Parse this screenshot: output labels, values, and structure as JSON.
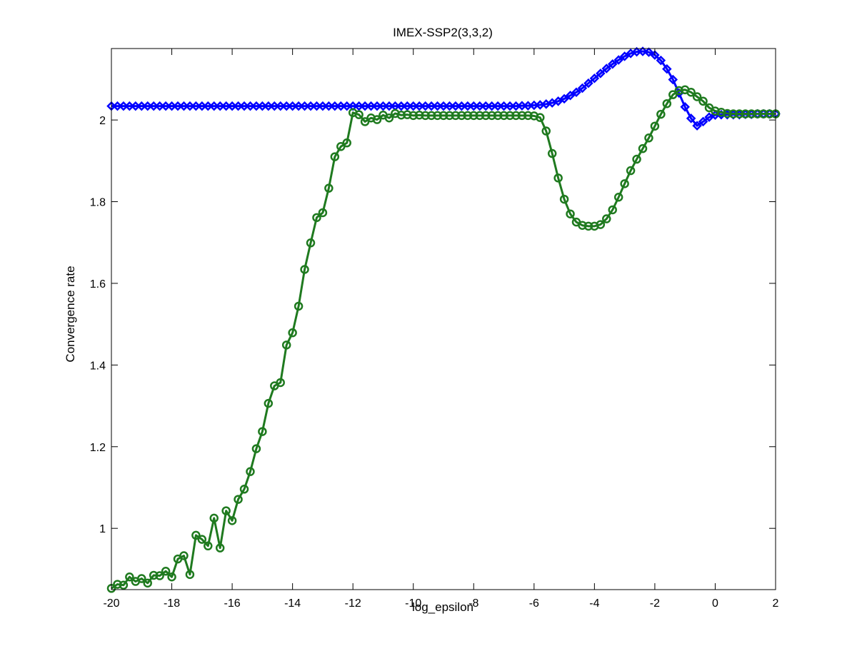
{
  "chart_data": {
    "type": "line",
    "title": "IMEX-SSP2(3,3,2)",
    "xlabel": "log_epsilon",
    "ylabel": "Convergence rate",
    "xlim": [
      -20,
      2
    ],
    "ylim": [
      0.85,
      2.175
    ],
    "x_ticks": [
      -20,
      -18,
      -16,
      -14,
      -12,
      -10,
      -8,
      -6,
      -4,
      -2,
      0,
      2
    ],
    "x_tick_labels": [
      "-20",
      "-18",
      "-16",
      "-14",
      "-12",
      "-10",
      "-8",
      "-6",
      "-4",
      "-2",
      "0",
      "2"
    ],
    "y_ticks": [
      1,
      1.2,
      1.4,
      1.6,
      1.8,
      2
    ],
    "y_tick_labels": [
      "1",
      "1.2",
      "1.4",
      "1.6",
      "1.8",
      "2"
    ],
    "grid": false,
    "legend": "none",
    "series": [
      {
        "color": "#0000ff",
        "marker": "diamond",
        "points": [
          [
            -20,
            2.034
          ],
          [
            -19.8,
            2.034
          ],
          [
            -19.6,
            2.034
          ],
          [
            -19.4,
            2.034
          ],
          [
            -19.2,
            2.034
          ],
          [
            -19.0,
            2.034
          ],
          [
            -18.8,
            2.034
          ],
          [
            -18.6,
            2.034
          ],
          [
            -18.4,
            2.034
          ],
          [
            -18.2,
            2.034
          ],
          [
            -18.0,
            2.034
          ],
          [
            -17.8,
            2.034
          ],
          [
            -17.6,
            2.034
          ],
          [
            -17.4,
            2.034
          ],
          [
            -17.2,
            2.034
          ],
          [
            -17.0,
            2.034
          ],
          [
            -16.8,
            2.034
          ],
          [
            -16.6,
            2.034
          ],
          [
            -16.4,
            2.034
          ],
          [
            -16.2,
            2.034
          ],
          [
            -16.0,
            2.034
          ],
          [
            -15.8,
            2.034
          ],
          [
            -15.6,
            2.034
          ],
          [
            -15.4,
            2.034
          ],
          [
            -15.2,
            2.034
          ],
          [
            -15.0,
            2.034
          ],
          [
            -14.8,
            2.034
          ],
          [
            -14.6,
            2.034
          ],
          [
            -14.4,
            2.034
          ],
          [
            -14.2,
            2.034
          ],
          [
            -14.0,
            2.034
          ],
          [
            -13.8,
            2.034
          ],
          [
            -13.6,
            2.034
          ],
          [
            -13.4,
            2.034
          ],
          [
            -13.2,
            2.034
          ],
          [
            -13.0,
            2.034
          ],
          [
            -12.8,
            2.034
          ],
          [
            -12.6,
            2.034
          ],
          [
            -12.4,
            2.034
          ],
          [
            -12.2,
            2.034
          ],
          [
            -12.0,
            2.034
          ],
          [
            -11.8,
            2.034
          ],
          [
            -11.6,
            2.034
          ],
          [
            -11.4,
            2.034
          ],
          [
            -11.2,
            2.034
          ],
          [
            -11.0,
            2.034
          ],
          [
            -10.8,
            2.034
          ],
          [
            -10.6,
            2.034
          ],
          [
            -10.4,
            2.034
          ],
          [
            -10.2,
            2.034
          ],
          [
            -10.0,
            2.034
          ],
          [
            -9.8,
            2.034
          ],
          [
            -9.6,
            2.034
          ],
          [
            -9.4,
            2.034
          ],
          [
            -9.2,
            2.034
          ],
          [
            -9.0,
            2.034
          ],
          [
            -8.8,
            2.034
          ],
          [
            -8.6,
            2.034
          ],
          [
            -8.4,
            2.034
          ],
          [
            -8.2,
            2.034
          ],
          [
            -8.0,
            2.034
          ],
          [
            -7.8,
            2.034
          ],
          [
            -7.6,
            2.034
          ],
          [
            -7.4,
            2.034
          ],
          [
            -7.2,
            2.034
          ],
          [
            -7.0,
            2.034
          ],
          [
            -6.8,
            2.034
          ],
          [
            -6.6,
            2.034
          ],
          [
            -6.4,
            2.035
          ],
          [
            -6.2,
            2.035
          ],
          [
            -6.0,
            2.036
          ],
          [
            -5.8,
            2.037
          ],
          [
            -5.6,
            2.039
          ],
          [
            -5.4,
            2.042
          ],
          [
            -5.2,
            2.046
          ],
          [
            -5.0,
            2.052
          ],
          [
            -4.8,
            2.06
          ],
          [
            -4.6,
            2.068
          ],
          [
            -4.4,
            2.078
          ],
          [
            -4.2,
            2.09
          ],
          [
            -4.0,
            2.102
          ],
          [
            -3.8,
            2.114
          ],
          [
            -3.6,
            2.126
          ],
          [
            -3.4,
            2.137
          ],
          [
            -3.2,
            2.147
          ],
          [
            -3.0,
            2.156
          ],
          [
            -2.8,
            2.163
          ],
          [
            -2.6,
            2.167
          ],
          [
            -2.4,
            2.168
          ],
          [
            -2.2,
            2.166
          ],
          [
            -2.0,
            2.159
          ],
          [
            -1.8,
            2.146
          ],
          [
            -1.6,
            2.125
          ],
          [
            -1.4,
            2.099
          ],
          [
            -1.2,
            2.066
          ],
          [
            -1.0,
            2.032
          ],
          [
            -0.8,
            2.004
          ],
          [
            -0.6,
            1.986
          ],
          [
            -0.4,
            1.996
          ],
          [
            -0.2,
            2.007
          ],
          [
            0.0,
            2.012
          ],
          [
            0.2,
            2.013
          ],
          [
            0.4,
            2.013
          ],
          [
            0.6,
            2.013
          ],
          [
            0.8,
            2.013
          ],
          [
            1.0,
            2.014
          ],
          [
            1.2,
            2.014
          ],
          [
            1.4,
            2.015
          ],
          [
            1.6,
            2.015
          ],
          [
            1.8,
            2.015
          ],
          [
            2.0,
            2.015
          ]
        ]
      },
      {
        "color": "#1f7a1f",
        "marker": "circle",
        "points": [
          [
            -20.0,
            0.853
          ],
          [
            -19.8,
            0.863
          ],
          [
            -19.6,
            0.861
          ],
          [
            -19.4,
            0.881
          ],
          [
            -19.2,
            0.87
          ],
          [
            -19.0,
            0.877
          ],
          [
            -18.8,
            0.866
          ],
          [
            -18.6,
            0.885
          ],
          [
            -18.4,
            0.884
          ],
          [
            -18.2,
            0.895
          ],
          [
            -18.0,
            0.881
          ],
          [
            -17.8,
            0.925
          ],
          [
            -17.6,
            0.933
          ],
          [
            -17.4,
            0.887
          ],
          [
            -17.2,
            0.983
          ],
          [
            -17.0,
            0.973
          ],
          [
            -16.8,
            0.957
          ],
          [
            -16.6,
            1.025
          ],
          [
            -16.4,
            0.952
          ],
          [
            -16.2,
            1.043
          ],
          [
            -16.0,
            1.019
          ],
          [
            -15.8,
            1.071
          ],
          [
            -15.6,
            1.096
          ],
          [
            -15.4,
            1.139
          ],
          [
            -15.2,
            1.195
          ],
          [
            -15.0,
            1.237
          ],
          [
            -14.8,
            1.306
          ],
          [
            -14.6,
            1.349
          ],
          [
            -14.4,
            1.357
          ],
          [
            -14.2,
            1.449
          ],
          [
            -14.0,
            1.479
          ],
          [
            -13.8,
            1.544
          ],
          [
            -13.6,
            1.634
          ],
          [
            -13.4,
            1.699
          ],
          [
            -13.2,
            1.761
          ],
          [
            -13.0,
            1.773
          ],
          [
            -12.8,
            1.833
          ],
          [
            -12.6,
            1.91
          ],
          [
            -12.4,
            1.935
          ],
          [
            -12.2,
            1.944
          ],
          [
            -12.0,
            2.018
          ],
          [
            -11.8,
            2.013
          ],
          [
            -11.6,
            1.996
          ],
          [
            -11.4,
            2.005
          ],
          [
            -11.2,
            2.001
          ],
          [
            -11.0,
            2.012
          ],
          [
            -10.8,
            2.005
          ],
          [
            -10.6,
            2.016
          ],
          [
            -10.4,
            2.012
          ],
          [
            -10.2,
            2.013
          ],
          [
            -10.0,
            2.011
          ],
          [
            -9.8,
            2.012
          ],
          [
            -9.6,
            2.011
          ],
          [
            -9.4,
            2.011
          ],
          [
            -9.2,
            2.011
          ],
          [
            -9.0,
            2.011
          ],
          [
            -8.8,
            2.011
          ],
          [
            -8.6,
            2.011
          ],
          [
            -8.4,
            2.011
          ],
          [
            -8.2,
            2.011
          ],
          [
            -8.0,
            2.011
          ],
          [
            -7.8,
            2.011
          ],
          [
            -7.6,
            2.011
          ],
          [
            -7.4,
            2.011
          ],
          [
            -7.2,
            2.011
          ],
          [
            -7.0,
            2.011
          ],
          [
            -6.8,
            2.011
          ],
          [
            -6.6,
            2.011
          ],
          [
            -6.4,
            2.011
          ],
          [
            -6.2,
            2.011
          ],
          [
            -6.0,
            2.01
          ],
          [
            -5.8,
            2.006
          ],
          [
            -5.6,
            1.973
          ],
          [
            -5.4,
            1.918
          ],
          [
            -5.2,
            1.858
          ],
          [
            -5.0,
            1.806
          ],
          [
            -4.8,
            1.77
          ],
          [
            -4.6,
            1.75
          ],
          [
            -4.4,
            1.742
          ],
          [
            -4.2,
            1.74
          ],
          [
            -4.0,
            1.74
          ],
          [
            -3.8,
            1.744
          ],
          [
            -3.6,
            1.758
          ],
          [
            -3.4,
            1.78
          ],
          [
            -3.2,
            1.811
          ],
          [
            -3.0,
            1.844
          ],
          [
            -2.8,
            1.876
          ],
          [
            -2.6,
            1.904
          ],
          [
            -2.4,
            1.93
          ],
          [
            -2.2,
            1.956
          ],
          [
            -2.0,
            1.985
          ],
          [
            -1.8,
            2.014
          ],
          [
            -1.6,
            2.04
          ],
          [
            -1.4,
            2.062
          ],
          [
            -1.2,
            2.072
          ],
          [
            -1.0,
            2.074
          ],
          [
            -0.8,
            2.068
          ],
          [
            -0.6,
            2.057
          ],
          [
            -0.4,
            2.046
          ],
          [
            -0.2,
            2.03
          ],
          [
            0.0,
            2.022
          ],
          [
            0.2,
            2.019
          ],
          [
            0.4,
            2.016
          ],
          [
            0.6,
            2.015
          ],
          [
            0.8,
            2.015
          ],
          [
            1.0,
            2.015
          ],
          [
            1.2,
            2.015
          ],
          [
            1.4,
            2.015
          ],
          [
            1.6,
            2.015
          ],
          [
            1.8,
            2.015
          ],
          [
            2.0,
            2.015
          ]
        ]
      }
    ]
  }
}
